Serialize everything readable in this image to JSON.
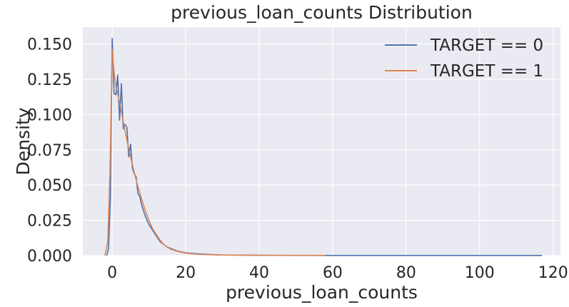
{
  "chart_data": {
    "type": "line",
    "title": "previous_loan_counts Distribution",
    "xlabel": "previous_loan_counts",
    "ylabel": "Density",
    "xlim": [
      -8,
      122
    ],
    "ylim": [
      0,
      0.162
    ],
    "x_ticks": [
      0,
      20,
      40,
      60,
      80,
      100,
      120
    ],
    "x_tick_labels": [
      "0",
      "20",
      "40",
      "60",
      "80",
      "100",
      "120"
    ],
    "y_ticks": [
      0,
      0.025,
      0.05,
      0.075,
      0.1,
      0.125,
      0.15
    ],
    "y_tick_labels": [
      "0.000",
      "0.025",
      "0.050",
      "0.075",
      "0.100",
      "0.125",
      "0.150"
    ],
    "grid": true,
    "legend_position": "top-right",
    "series": [
      {
        "name": "TARGET == 0",
        "color": "#4c72b0",
        "points": [
          [
            -1.5,
            0
          ],
          [
            -1,
            0.005
          ],
          [
            -0.5,
            0.04
          ],
          [
            0,
            0.154
          ],
          [
            0.5,
            0.115
          ],
          [
            1,
            0.114
          ],
          [
            1.5,
            0.128
          ],
          [
            2,
            0.096
          ],
          [
            2.5,
            0.122
          ],
          [
            3,
            0.09
          ],
          [
            3.5,
            0.093
          ],
          [
            4,
            0.091
          ],
          [
            4.5,
            0.07
          ],
          [
            5,
            0.079
          ],
          [
            5.5,
            0.062
          ],
          [
            6,
            0.058
          ],
          [
            6.5,
            0.056
          ],
          [
            7,
            0.044
          ],
          [
            7.5,
            0.042
          ],
          [
            8,
            0.036
          ],
          [
            8.5,
            0.032
          ],
          [
            9,
            0.028
          ],
          [
            9.5,
            0.025
          ],
          [
            10,
            0.022
          ],
          [
            11,
            0.018
          ],
          [
            12,
            0.014
          ],
          [
            13,
            0.01
          ],
          [
            14,
            0.008
          ],
          [
            15,
            0.006
          ],
          [
            16,
            0.005
          ],
          [
            17,
            0.004
          ],
          [
            18,
            0.003
          ],
          [
            20,
            0.002
          ],
          [
            22,
            0.0015
          ],
          [
            25,
            0.001
          ],
          [
            30,
            0.0004
          ],
          [
            40,
            0.0002
          ],
          [
            60,
            0.0001
          ],
          [
            80,
            0.0001
          ],
          [
            100,
            0.0001
          ],
          [
            117,
            0.0001
          ]
        ]
      },
      {
        "name": "TARGET == 1",
        "color": "#dd8452",
        "points": [
          [
            -2,
            0
          ],
          [
            -1.2,
            0.01
          ],
          [
            -0.6,
            0.06
          ],
          [
            0,
            0.146
          ],
          [
            0.5,
            0.13
          ],
          [
            1,
            0.12
          ],
          [
            2,
            0.109
          ],
          [
            3,
            0.095
          ],
          [
            4,
            0.082
          ],
          [
            5,
            0.07
          ],
          [
            6,
            0.059
          ],
          [
            7,
            0.049
          ],
          [
            8,
            0.04
          ],
          [
            9,
            0.032
          ],
          [
            10,
            0.025
          ],
          [
            11,
            0.019
          ],
          [
            12,
            0.015
          ],
          [
            13,
            0.011
          ],
          [
            14,
            0.008
          ],
          [
            15,
            0.006
          ],
          [
            16,
            0.0045
          ],
          [
            18,
            0.0028
          ],
          [
            20,
            0.0018
          ],
          [
            22,
            0.0012
          ],
          [
            25,
            0.0007
          ],
          [
            30,
            0.0004
          ],
          [
            40,
            0.0002
          ],
          [
            50,
            0.0001
          ],
          [
            58,
            0.0001
          ]
        ]
      }
    ]
  }
}
